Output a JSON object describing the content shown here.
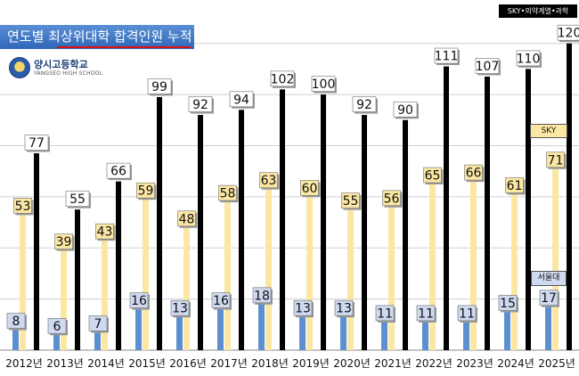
{
  "title": "연도별 최상위대학 합격인원 누적",
  "school": {
    "name": "양시고등학교",
    "sub": "YANGSEO HIGH SCHOOL"
  },
  "legend": {
    "total": "SKY•의약계열•과학",
    "sky": "SKY",
    "snu": "서울대"
  },
  "colors": {
    "total": "#000000",
    "sky": "#fbe7a3",
    "snu": "#5b8fd0",
    "label_total_bg": "#ffffff",
    "label_sky_bg": "#fbe7a3",
    "label_snu_bg": "#cfdaf0"
  },
  "chart_data": {
    "type": "bar",
    "categories": [
      "2012년",
      "2013년",
      "2014년",
      "2015년",
      "2016년",
      "2017년",
      "2018년",
      "2019년",
      "2020년",
      "2021년",
      "2022년",
      "2023년",
      "2024년",
      "2025년"
    ],
    "series": [
      {
        "name": "서울대",
        "values": [
          8,
          6,
          7,
          16,
          13,
          16,
          18,
          13,
          13,
          11,
          11,
          11,
          15,
          17
        ]
      },
      {
        "name": "SKY",
        "values": [
          53,
          39,
          43,
          59,
          48,
          58,
          63,
          60,
          55,
          56,
          65,
          66,
          61,
          71
        ]
      },
      {
        "name": "SKY•의약계열•과학",
        "values": [
          77,
          55,
          66,
          99,
          92,
          94,
          102,
          100,
          92,
          90,
          111,
          107,
          110,
          120
        ]
      }
    ],
    "ylim": [
      0,
      130
    ],
    "grid": true
  }
}
